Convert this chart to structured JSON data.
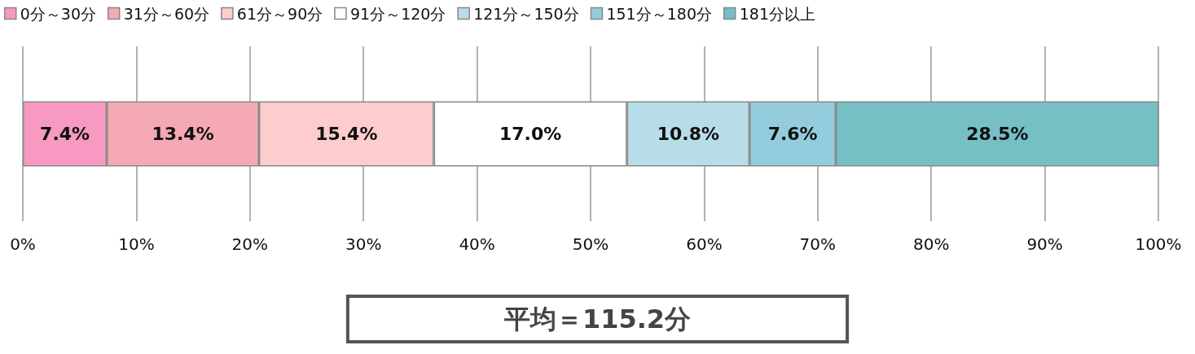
{
  "chart_data": {
    "type": "bar",
    "orientation": "horizontal",
    "stacked": true,
    "categories": [
      null
    ],
    "series": [
      {
        "name": "0分～30分",
        "color": "#f799c0",
        "values": [
          7.4
        ],
        "value_labels": [
          "7.4%"
        ]
      },
      {
        "name": "31分～60分",
        "color": "#f5a9b4",
        "values": [
          13.4
        ],
        "value_labels": [
          "13.4%"
        ]
      },
      {
        "name": "61分～90分",
        "color": "#fdcccc",
        "values": [
          15.4
        ],
        "value_labels": [
          "15.4%"
        ]
      },
      {
        "name": "91分～120分",
        "color": "#ffffff",
        "values": [
          17.0
        ],
        "value_labels": [
          "17.0%"
        ]
      },
      {
        "name": "121分～150分",
        "color": "#b7dde8",
        "values": [
          10.8
        ],
        "value_labels": [
          "10.8%"
        ]
      },
      {
        "name": "151分～180分",
        "color": "#93cddd",
        "values": [
          7.6
        ],
        "value_labels": [
          "7.6%"
        ]
      },
      {
        "name": "181分以上",
        "color": "#75bfc5",
        "values": [
          28.5
        ],
        "value_labels": [
          "28.5%"
        ]
      }
    ],
    "xlim": [
      0,
      100
    ],
    "xticks": [
      {
        "value": 0,
        "label": "0%"
      },
      {
        "value": 10,
        "label": "10%"
      },
      {
        "value": 20,
        "label": "20%"
      },
      {
        "value": 30,
        "label": "30%"
      },
      {
        "value": 40,
        "label": "40%"
      },
      {
        "value": 50,
        "label": "50%"
      },
      {
        "value": 60,
        "label": "60%"
      },
      {
        "value": 70,
        "label": "70%"
      },
      {
        "value": 80,
        "label": "80%"
      },
      {
        "value": 90,
        "label": "90%"
      },
      {
        "value": 100,
        "label": "100%"
      }
    ],
    "grid": "x",
    "legend": "top",
    "annotations": [
      "平均＝115.2分"
    ]
  }
}
